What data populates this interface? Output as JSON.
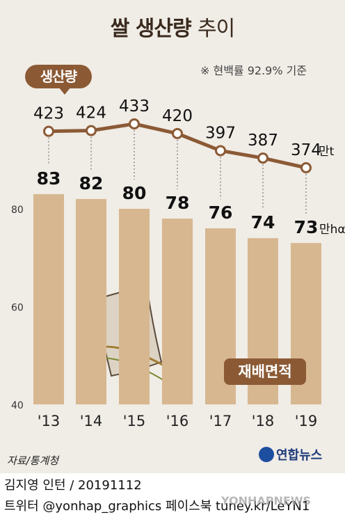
{
  "header": {
    "title_bold": "쌀 생산량",
    "title_light": "추이",
    "note": "※ 현백률 92.9% 기준"
  },
  "production_label": "생산량",
  "area_label": "재배면적",
  "source": "자료/통계청",
  "logo_text": "연합뉴스",
  "credit_line1": "김지영 인턴 / 20191112",
  "credit_line2": "트위터 @yonhap_graphics  페이스북 tuney.kr/LeYN1",
  "watermark": "YONHAPNEWS",
  "colors": {
    "background": "#f0ece6",
    "bar": "#d7b790",
    "line": "#8b5a35",
    "accent": "#8b5a35"
  },
  "chart_data": [
    {
      "type": "line",
      "name": "생산량",
      "categories": [
        "'13",
        "'14",
        "'15",
        "'16",
        "'17",
        "'18",
        "'19"
      ],
      "values": [
        423,
        424,
        433,
        420,
        397,
        387,
        374
      ],
      "value_labels": [
        "423",
        "424",
        "433",
        "420",
        "397",
        "387",
        "374"
      ],
      "unit": "만t"
    },
    {
      "type": "bar",
      "name": "재배면적",
      "categories": [
        "'13",
        "'14",
        "'15",
        "'16",
        "'17",
        "'18",
        "'19"
      ],
      "values": [
        83,
        82,
        80,
        78,
        76,
        74,
        73
      ],
      "value_labels": [
        "83",
        "82",
        "80",
        "78",
        "76",
        "74",
        "73"
      ],
      "unit": "만hα",
      "y_ticks": [
        "80",
        "60",
        "40"
      ],
      "ylim": [
        40,
        90
      ],
      "grid": false
    }
  ]
}
